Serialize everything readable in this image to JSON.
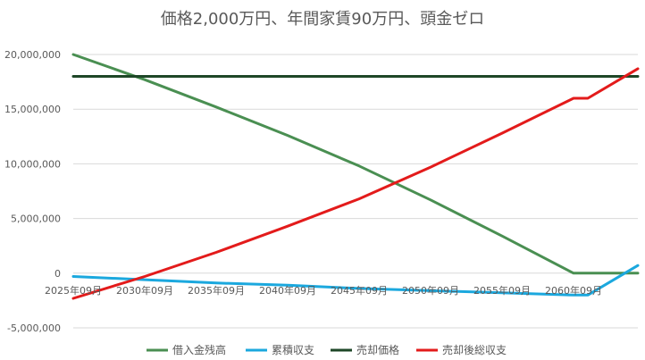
{
  "chart_data": {
    "type": "line",
    "title": "価格2,000万円、年間家賃90万円、頭金ゼロ",
    "xlabel": "",
    "ylabel": "",
    "ylim": [
      -5000000,
      20000000
    ],
    "yticks": [
      -5000000,
      0,
      5000000,
      10000000,
      15000000,
      20000000
    ],
    "ytick_labels": [
      "-5,000,000",
      "0",
      "5,000,000",
      "10,000,000",
      "15,000,000",
      "20,000,000"
    ],
    "x_start_year": 2025.67,
    "x_end_year": 2065.17,
    "x_tick_years": [
      2025.67,
      2030.67,
      2035.67,
      2040.67,
      2045.67,
      2050.67,
      2055.67,
      2060.67
    ],
    "x_tick_labels": [
      "2025年09月",
      "2030年09月",
      "2035年09月",
      "2040年09月",
      "2045年09月",
      "2050年09月",
      "2055年09月",
      "2060年09月"
    ],
    "grid": true,
    "legend_position": "bottom",
    "series": [
      {
        "name": "借入金残高",
        "color": "#4a8f52",
        "x": [
          2025.67,
          2030.67,
          2035.67,
          2040.67,
          2045.67,
          2050.67,
          2055.67,
          2060.67,
          2061.67,
          2065.17
        ],
        "y": [
          20000000,
          17700000,
          15200000,
          12600000,
          9800000,
          6700000,
          3400000,
          0,
          0,
          0
        ]
      },
      {
        "name": "累積収支",
        "color": "#1ba8de",
        "x": [
          2025.67,
          2030.67,
          2035.67,
          2040.67,
          2045.67,
          2050.67,
          2055.67,
          2060.67,
          2061.67,
          2065.17
        ],
        "y": [
          -300000,
          -600000,
          -900000,
          -1100000,
          -1400000,
          -1600000,
          -1800000,
          -2000000,
          -2000000,
          700000
        ]
      },
      {
        "name": "売却価格",
        "color": "#1e4727",
        "x": [
          2025.67,
          2065.17
        ],
        "y": [
          18000000,
          18000000
        ]
      },
      {
        "name": "売却後総収支",
        "color": "#e31b1b",
        "x": [
          2025.67,
          2030.67,
          2035.67,
          2040.67,
          2045.67,
          2050.67,
          2055.67,
          2060.67,
          2061.67,
          2065.17
        ],
        "y": [
          -2300000,
          -300000,
          1900000,
          4300000,
          6800000,
          9700000,
          12800000,
          16000000,
          16000000,
          18700000
        ]
      }
    ]
  }
}
